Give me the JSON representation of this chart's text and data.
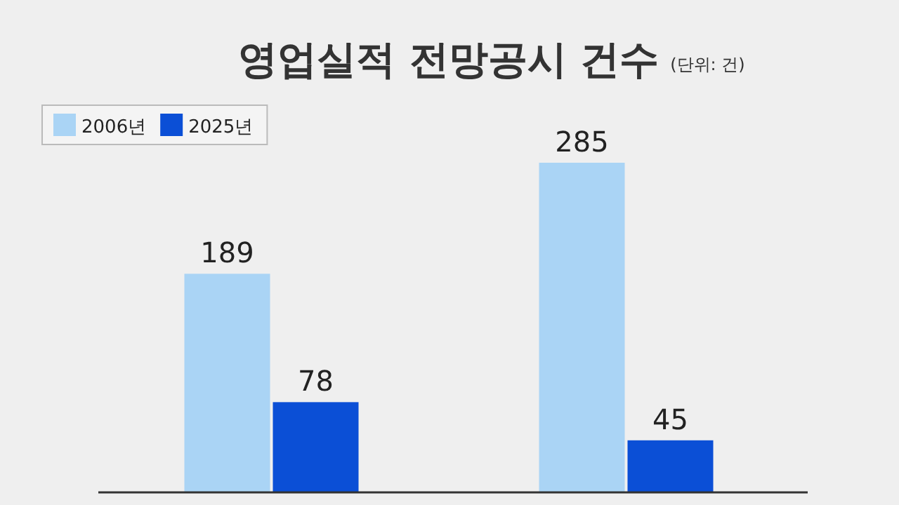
{
  "chart_data": {
    "type": "bar",
    "title": "영업실적 전망공시 건수",
    "subtitle": "(단위: 건)",
    "categories": [
      null,
      null
    ],
    "series": [
      {
        "name": "2006년",
        "color": "#aad4f5",
        "values": [
          189,
          285
        ]
      },
      {
        "name": "2025년",
        "color": "#0b4fd6",
        "values": [
          78,
          45
        ]
      }
    ],
    "data_labels": true,
    "legend": "top left"
  }
}
